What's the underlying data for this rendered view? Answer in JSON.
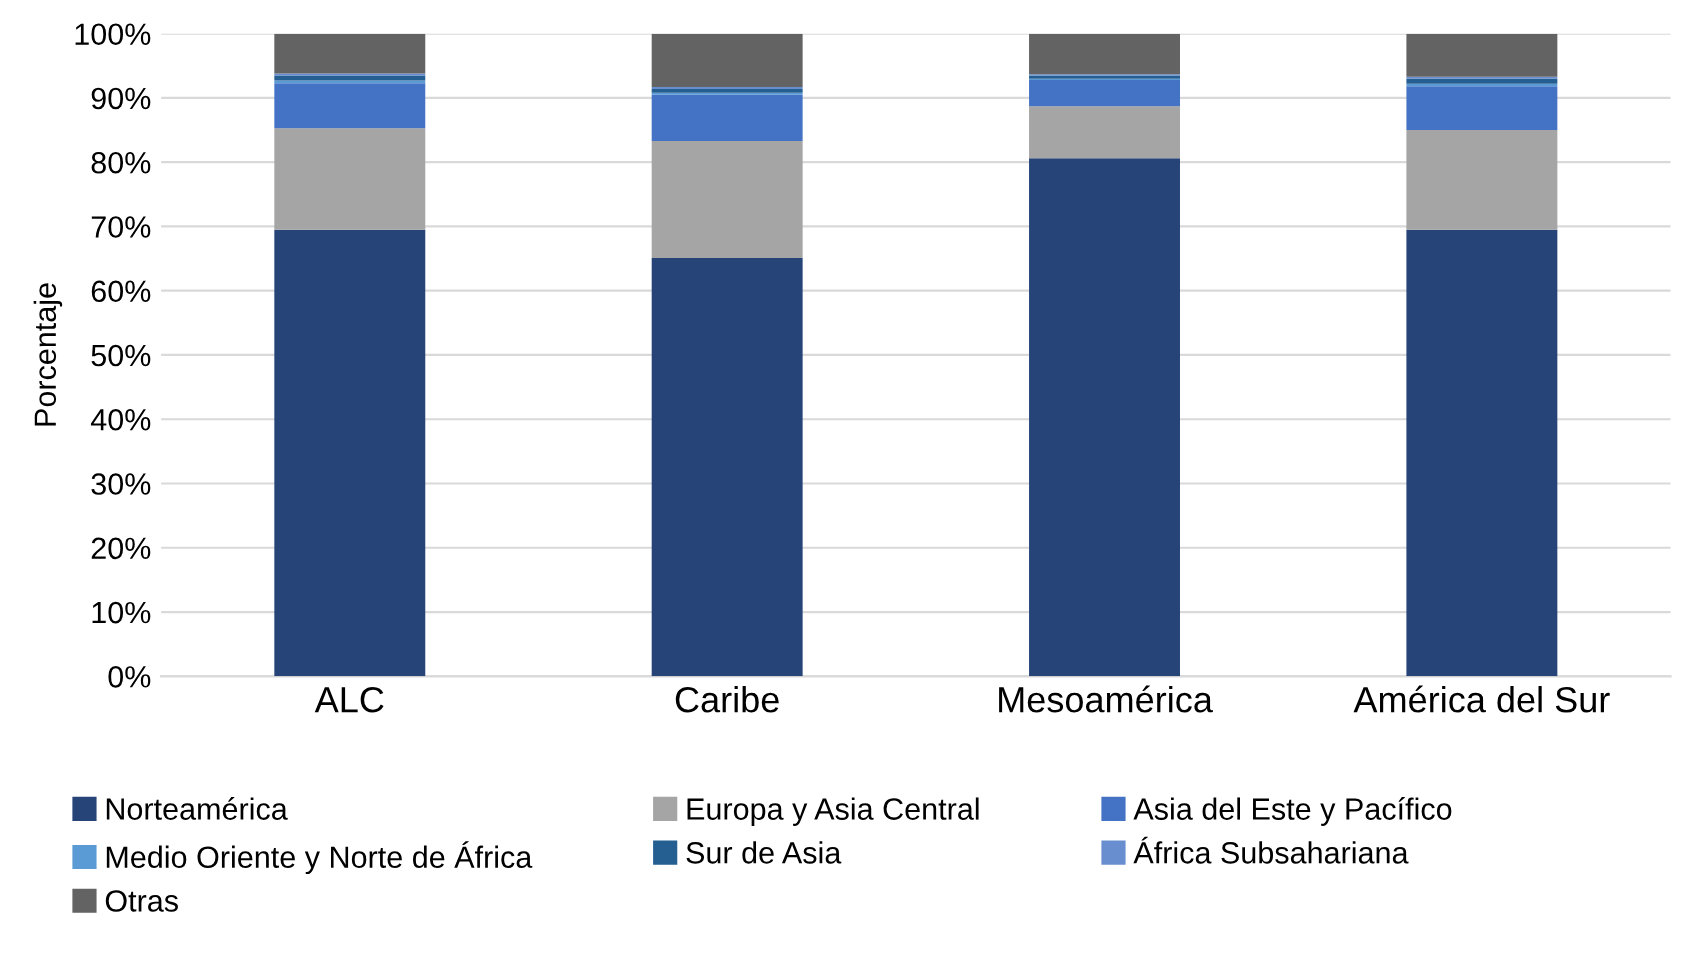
{
  "chart_data": {
    "type": "bar",
    "stacked": true,
    "ylabel": "Porcentaje",
    "categories": [
      "ALC",
      "Caribe",
      "Mesoamérica",
      "América del Sur"
    ],
    "series": [
      {
        "name": "Norteamérica",
        "color": "#264478",
        "values": [
          69.5,
          65.1,
          80.6,
          69.5
        ]
      },
      {
        "name": "Europa y Asia Central",
        "color": "#a5a5a5",
        "values": [
          15.8,
          18.2,
          8.1,
          15.5
        ]
      },
      {
        "name": "Asia del Este y Pacífico",
        "color": "#4472c4",
        "values": [
          7.0,
          7.2,
          4.1,
          6.8
        ]
      },
      {
        "name": "Medio Oriente y Norte de África",
        "color": "#5b9bd5",
        "values": [
          0.4,
          0.3,
          0.2,
          0.4
        ]
      },
      {
        "name": "Sur de Asia",
        "color": "#255e91",
        "values": [
          0.8,
          0.6,
          0.5,
          0.8
        ]
      },
      {
        "name": "África Subsahariana",
        "color": "#698ed0",
        "values": [
          0.3,
          0.3,
          0.2,
          0.3
        ]
      },
      {
        "name": "Otras",
        "color": "#636363",
        "values": [
          6.2,
          8.3,
          6.3,
          6.7
        ]
      }
    ],
    "ylim": [
      0,
      100
    ],
    "yticks": [
      {
        "value": 0,
        "label": "0%"
      },
      {
        "value": 10,
        "label": "10%"
      },
      {
        "value": 20,
        "label": "20%"
      },
      {
        "value": 30,
        "label": "30%"
      },
      {
        "value": 40,
        "label": "40%"
      },
      {
        "value": 50,
        "label": "50%"
      },
      {
        "value": 60,
        "label": "60%"
      },
      {
        "value": 70,
        "label": "70%"
      },
      {
        "value": 80,
        "label": "80%"
      },
      {
        "value": 90,
        "label": "90%"
      },
      {
        "value": 100,
        "label": "100%"
      }
    ],
    "grid": "y",
    "legend": "bottom"
  }
}
